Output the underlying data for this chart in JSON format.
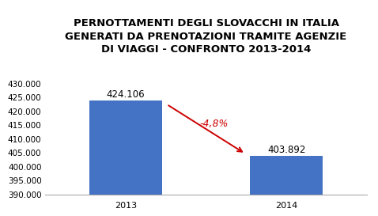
{
  "title_lines": [
    "PERNOTTAMENTI DEGLI SLOVACCHI IN ITALIA",
    "GENERATI DA PRENOTAZIONI TRAMITE AGENZIE",
    "DI VIAGGI - CONFRONTO 2013-2014"
  ],
  "categories": [
    "2013",
    "2014"
  ],
  "values": [
    424106,
    403892
  ],
  "bar_labels": [
    "424.106",
    "403.892"
  ],
  "bar_color": "#4472C4",
  "background_color": "#FFFFFF",
  "ylim": [
    390000,
    432000
  ],
  "yticks": [
    390000,
    395000,
    400000,
    405000,
    410000,
    415000,
    420000,
    425000,
    430000
  ],
  "ytick_labels": [
    "390.000",
    "395.000",
    "400.000",
    "405.000",
    "410.000",
    "415.000",
    "420.000",
    "425.000",
    "430.000"
  ],
  "arrow_label": "-4,8%",
  "arrow_color": "#CC0000",
  "title_fontsize": 9.5,
  "bar_label_fontsize": 8.5,
  "tick_fontsize": 7.5,
  "bar_width": 0.45
}
